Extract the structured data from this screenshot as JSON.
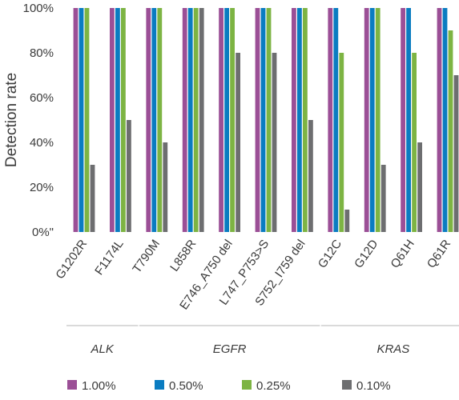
{
  "chart_data": {
    "type": "bar",
    "title": "",
    "xlabel": "",
    "ylabel": "Detection rate",
    "ylim": [
      0,
      100
    ],
    "yticks": [
      "0%\"",
      "20%",
      "40%",
      "60%",
      "80%",
      "100%"
    ],
    "categories": [
      "G1202R",
      "F1174L",
      "T790M",
      "L858R",
      "E746_A750 del",
      "L747_P753>S",
      "S752_I759 del",
      "G12C",
      "G12D",
      "Q61H",
      "Q61R"
    ],
    "groups": [
      {
        "label": "ALK",
        "from": 0,
        "to": 1
      },
      {
        "label": "EGFR",
        "from": 2,
        "to": 6
      },
      {
        "label": "KRAS",
        "from": 7,
        "to": 10
      }
    ],
    "series": [
      {
        "name": "1.00%",
        "color": "#9b4f96",
        "values": [
          100,
          100,
          100,
          100,
          100,
          100,
          100,
          100,
          100,
          100,
          100
        ]
      },
      {
        "name": "0.50%",
        "color": "#0a7cc1",
        "values": [
          100,
          100,
          100,
          100,
          100,
          100,
          100,
          100,
          100,
          100,
          100
        ]
      },
      {
        "name": "0.25%",
        "color": "#7db443",
        "values": [
          100,
          100,
          100,
          100,
          100,
          100,
          100,
          80,
          100,
          80,
          90
        ]
      },
      {
        "name": "0.10%",
        "color": "#6d6e70",
        "values": [
          30,
          50,
          40,
          100,
          80,
          80,
          50,
          10,
          30,
          40,
          70
        ]
      }
    ],
    "grid": false,
    "legend_position": "bottom"
  }
}
